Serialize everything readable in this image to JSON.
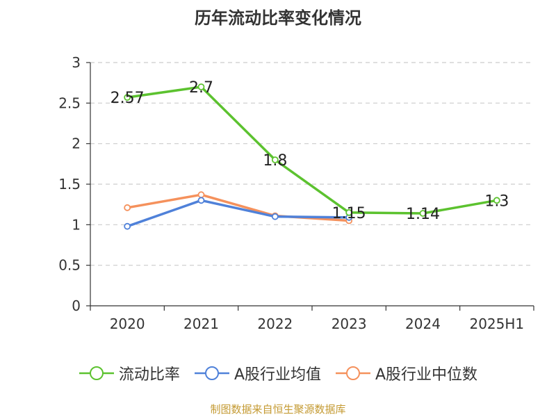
{
  "title": "历年流动比率变化情况",
  "source": "制图数据来自恒生聚源数据库",
  "chart_data": {
    "type": "line",
    "categories": [
      "2020",
      "2021",
      "2022",
      "2023",
      "2024",
      "2025H1"
    ],
    "ylim": [
      0,
      3
    ],
    "yticks": [
      0,
      0.5,
      1,
      1.5,
      2,
      2.5,
      3
    ],
    "grid": "horizontal-dashed",
    "legend_position": "bottom",
    "series": [
      {
        "name": "流动比率",
        "color": "#5cc22f",
        "values": [
          2.57,
          2.7,
          1.8,
          1.15,
          1.14,
          1.3
        ],
        "labels": [
          "2.57",
          "2.7",
          "1.8",
          "1.15",
          "1.14",
          "1.3"
        ]
      },
      {
        "name": "A股行业均值",
        "color": "#4f81d9",
        "values": [
          0.98,
          1.3,
          1.1,
          1.09,
          null,
          null
        ]
      },
      {
        "name": "A股行业中位数",
        "color": "#f5915c",
        "values": [
          1.21,
          1.37,
          1.11,
          1.05,
          null,
          null
        ]
      }
    ]
  }
}
